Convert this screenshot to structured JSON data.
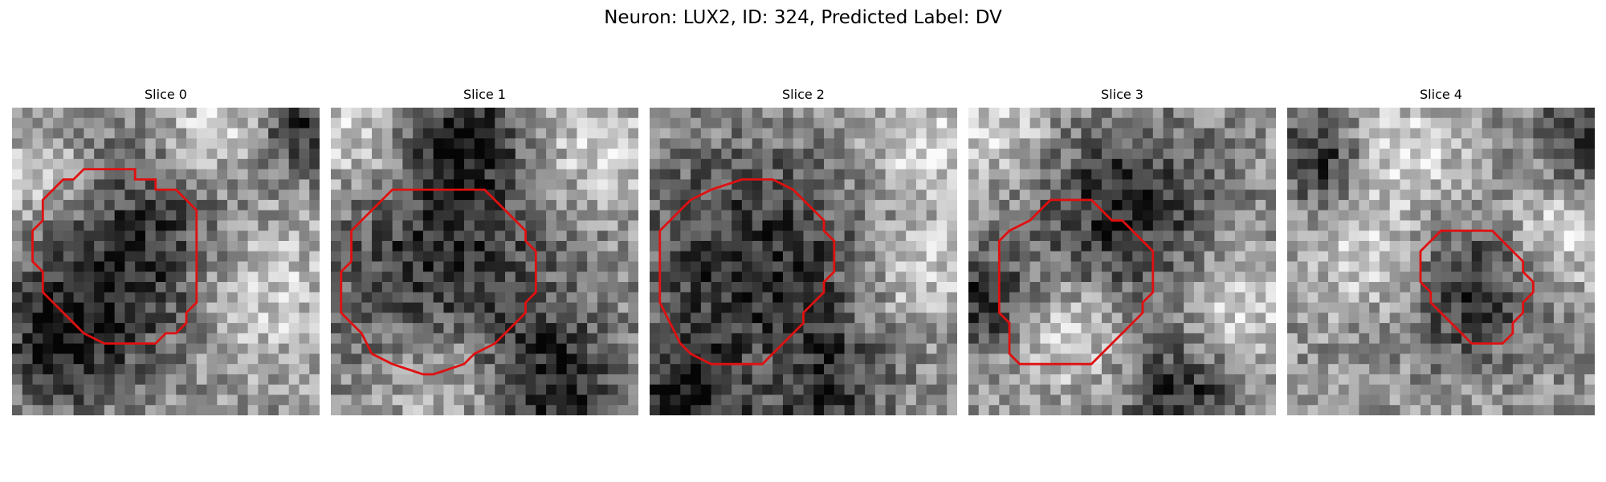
{
  "figure": {
    "title": "Neuron: LUX2, ID: 324, Predicted Label: DV"
  },
  "colors": {
    "contour": "#e01010",
    "background": "#ffffff"
  },
  "panels": [
    {
      "title": "Slice 0",
      "contour": [
        [
          10,
          6
        ],
        [
          12,
          6
        ],
        [
          12,
          7
        ],
        [
          14,
          7
        ],
        [
          14,
          8
        ],
        [
          16,
          8
        ],
        [
          18,
          10
        ],
        [
          18,
          19
        ],
        [
          17,
          20
        ],
        [
          17,
          21
        ],
        [
          16,
          22
        ],
        [
          15,
          22
        ],
        [
          14,
          23
        ],
        [
          9,
          23
        ],
        [
          7,
          22
        ],
        [
          6,
          21
        ],
        [
          4,
          19
        ],
        [
          3,
          18
        ],
        [
          3,
          16
        ],
        [
          2,
          15
        ],
        [
          2,
          12
        ],
        [
          3,
          11
        ],
        [
          3,
          9
        ],
        [
          4,
          8
        ],
        [
          5,
          7
        ],
        [
          6,
          7
        ],
        [
          7,
          6
        ]
      ],
      "dark_blobs": [
        [
          12,
          14,
          7
        ],
        [
          5,
          23,
          4.5
        ],
        [
          28,
          2,
          3
        ]
      ],
      "light_blobs": [
        [
          3,
          7,
          3.5
        ],
        [
          20,
          2,
          4
        ],
        [
          24,
          18,
          5
        ]
      ]
    },
    {
      "title": "Slice 1",
      "contour": [
        [
          6,
          8
        ],
        [
          15,
          8
        ],
        [
          16,
          9
        ],
        [
          17,
          10
        ],
        [
          18,
          11
        ],
        [
          19,
          12
        ],
        [
          19,
          13
        ],
        [
          20,
          14
        ],
        [
          20,
          18
        ],
        [
          19,
          19
        ],
        [
          19,
          20
        ],
        [
          18,
          21
        ],
        [
          17,
          22
        ],
        [
          16,
          23
        ],
        [
          14,
          24
        ],
        [
          13,
          25
        ],
        [
          10,
          26
        ],
        [
          9,
          26
        ],
        [
          6,
          25
        ],
        [
          4,
          24
        ],
        [
          3,
          22
        ],
        [
          2,
          21
        ],
        [
          1,
          20
        ],
        [
          1,
          16
        ],
        [
          2,
          15
        ],
        [
          2,
          12
        ],
        [
          3,
          11
        ],
        [
          4,
          10
        ],
        [
          5,
          9
        ]
      ],
      "dark_blobs": [
        [
          11,
          16,
          8
        ],
        [
          13,
          3,
          4
        ],
        [
          22,
          27,
          4.5
        ]
      ],
      "light_blobs": [
        [
          2,
          3,
          4
        ],
        [
          26,
          4,
          4
        ],
        [
          11,
          26,
          4.5
        ]
      ]
    },
    {
      "title": "Slice 2",
      "contour": [
        [
          6,
          8
        ],
        [
          9,
          7
        ],
        [
          12,
          7
        ],
        [
          14,
          8
        ],
        [
          15,
          9
        ],
        [
          16,
          10
        ],
        [
          17,
          11
        ],
        [
          17,
          12
        ],
        [
          18,
          13
        ],
        [
          18,
          16
        ],
        [
          17,
          17
        ],
        [
          17,
          18
        ],
        [
          16,
          19
        ],
        [
          15,
          20
        ],
        [
          15,
          21
        ],
        [
          14,
          22
        ],
        [
          13,
          23
        ],
        [
          12,
          24
        ],
        [
          11,
          25
        ],
        [
          6,
          25
        ],
        [
          4,
          24
        ],
        [
          3,
          23
        ],
        [
          2,
          21
        ],
        [
          1,
          19
        ],
        [
          1,
          12
        ],
        [
          2,
          11
        ],
        [
          3,
          10
        ],
        [
          4,
          9
        ]
      ],
      "dark_blobs": [
        [
          10,
          15,
          8
        ],
        [
          15,
          28,
          5
        ],
        [
          3,
          28,
          4
        ]
      ],
      "light_blobs": [
        [
          27,
          4,
          4
        ],
        [
          26,
          16,
          3.5
        ],
        [
          12,
          26,
          3
        ]
      ]
    },
    {
      "title": "Slice 3",
      "contour": [
        [
          9,
          9
        ],
        [
          12,
          9
        ],
        [
          14,
          11
        ],
        [
          15,
          11
        ],
        [
          16,
          12
        ],
        [
          17,
          13
        ],
        [
          18,
          14
        ],
        [
          18,
          18
        ],
        [
          17,
          19
        ],
        [
          17,
          20
        ],
        [
          16,
          21
        ],
        [
          15,
          22
        ],
        [
          14,
          23
        ],
        [
          13,
          24
        ],
        [
          12,
          25
        ],
        [
          5,
          25
        ],
        [
          4,
          24
        ],
        [
          4,
          21
        ],
        [
          3,
          20
        ],
        [
          3,
          13
        ],
        [
          4,
          12
        ],
        [
          6,
          11
        ],
        [
          7,
          10
        ],
        [
          8,
          9
        ]
      ],
      "dark_blobs": [
        [
          15,
          10,
          6.5
        ],
        [
          21,
          28,
          4
        ],
        [
          1,
          19,
          3.5
        ]
      ],
      "light_blobs": [
        [
          3,
          2,
          4
        ],
        [
          26,
          20,
          4
        ],
        [
          10,
          22,
          4
        ]
      ]
    },
    {
      "title": "Slice 4",
      "contour": [
        [
          15,
          12
        ],
        [
          20,
          12
        ],
        [
          21,
          13
        ],
        [
          22,
          14
        ],
        [
          23,
          15
        ],
        [
          23,
          16
        ],
        [
          24,
          17
        ],
        [
          24,
          18
        ],
        [
          23,
          19
        ],
        [
          23,
          20
        ],
        [
          22,
          21
        ],
        [
          22,
          22
        ],
        [
          21,
          23
        ],
        [
          18,
          23
        ],
        [
          17,
          22
        ],
        [
          16,
          21
        ],
        [
          15,
          20
        ],
        [
          14,
          19
        ],
        [
          14,
          18
        ],
        [
          13,
          17
        ],
        [
          13,
          14
        ],
        [
          14,
          13
        ]
      ],
      "dark_blobs": [
        [
          18,
          18,
          4.5
        ],
        [
          29,
          3,
          3.5
        ],
        [
          3,
          5,
          3
        ]
      ],
      "light_blobs": [
        [
          8,
          14,
          4
        ],
        [
          27,
          12,
          4
        ],
        [
          12,
          4,
          3.5
        ]
      ]
    }
  ]
}
